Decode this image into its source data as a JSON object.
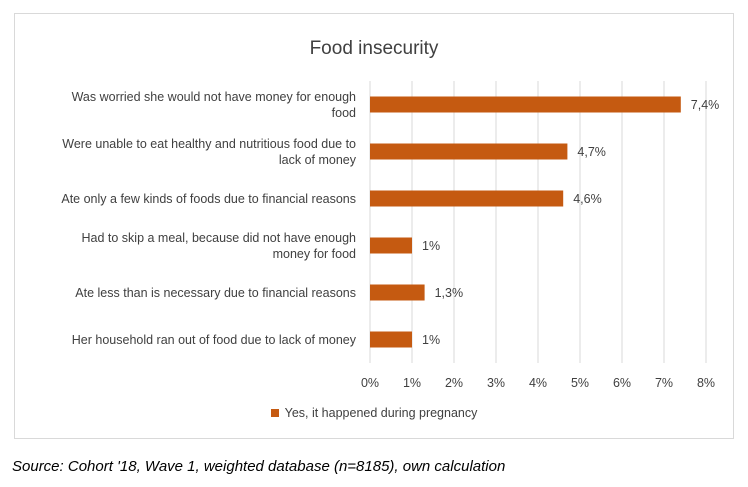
{
  "caption": "Source: Cohort '18, Wave 1, weighted database (n=8185), own calculation",
  "colors": {
    "bar": "#c55a11",
    "grid": "#d9d9d9",
    "text": "#404040"
  },
  "chart_data": {
    "type": "bar",
    "orientation": "horizontal",
    "title": "Food insecurity",
    "categories": [
      [
        "Was worried she would not have money for enough",
        "food"
      ],
      [
        "Were unable to eat healthy and nutritious food due to",
        "lack of money"
      ],
      [
        "Ate only a few kinds of foods due to financial reasons"
      ],
      [
        "Had to skip a meal, because did not have enough",
        "money for food"
      ],
      [
        "Ate less than is necessary due to financial reasons"
      ],
      [
        "Her household ran out of food due to lack of money"
      ]
    ],
    "series": [
      {
        "name": "Yes, it happened during pregnancy",
        "values": [
          7.4,
          4.7,
          4.6,
          1,
          1.3,
          1
        ],
        "labels": [
          "7,4%",
          "4,7%",
          "4,6%",
          "1%",
          "1,3%",
          "1%"
        ]
      }
    ],
    "xlim": [
      0,
      8
    ],
    "xticks": [
      "0%",
      "1%",
      "2%",
      "3%",
      "4%",
      "5%",
      "6%",
      "7%",
      "8%"
    ],
    "grid": true,
    "legend": "bottom"
  }
}
